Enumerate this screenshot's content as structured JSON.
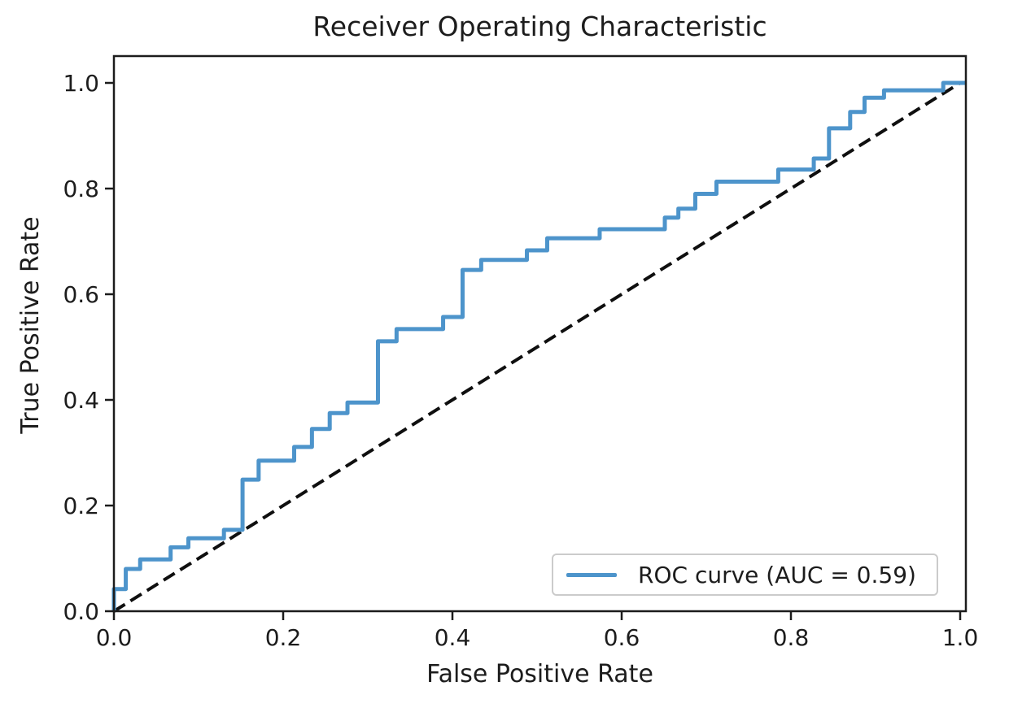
{
  "figure": {
    "title": "Receiver Operating Characteristic",
    "xlabel": "False Positive Rate",
    "ylabel": "True Positive Rate"
  },
  "legend": {
    "label": "ROC curve (AUC = 0.59)"
  },
  "colors": {
    "roc_line": "#4d94cb",
    "diagonal": "#0f0f0f",
    "axis": "#1c1c1c",
    "legend_border": "#cbcbcb",
    "background": "#ffffff"
  },
  "chart_data": {
    "type": "line",
    "title": "Receiver Operating Characteristic",
    "xlabel": "False Positive Rate",
    "ylabel": "True Positive Rate",
    "xlim": [
      0.0,
      1.0
    ],
    "ylim": [
      0.0,
      1.05
    ],
    "x_ticks": [
      "0.0",
      "0.2",
      "0.4",
      "0.6",
      "0.8",
      "1.0"
    ],
    "y_ticks": [
      "0.0",
      "0.2",
      "0.4",
      "0.6",
      "0.8",
      "1.0"
    ],
    "grid": false,
    "legend_position": "lower right",
    "auc": 0.59,
    "series": [
      {
        "name": "ROC curve (AUC = 0.59)",
        "color": "#4d94cb",
        "linestyle": "solid",
        "drawstyle": "steps",
        "points": [
          [
            0.0,
            0.0
          ],
          [
            0.0,
            0.042
          ],
          [
            0.014,
            0.08
          ],
          [
            0.031,
            0.098
          ],
          [
            0.067,
            0.121
          ],
          [
            0.088,
            0.138
          ],
          [
            0.13,
            0.154
          ],
          [
            0.152,
            0.249
          ],
          [
            0.171,
            0.285
          ],
          [
            0.213,
            0.311
          ],
          [
            0.234,
            0.345
          ],
          [
            0.255,
            0.375
          ],
          [
            0.276,
            0.395
          ],
          [
            0.312,
            0.511
          ],
          [
            0.334,
            0.534
          ],
          [
            0.389,
            0.557
          ],
          [
            0.412,
            0.646
          ],
          [
            0.434,
            0.665
          ],
          [
            0.488,
            0.683
          ],
          [
            0.512,
            0.706
          ],
          [
            0.574,
            0.723
          ],
          [
            0.651,
            0.745
          ],
          [
            0.667,
            0.762
          ],
          [
            0.687,
            0.79
          ],
          [
            0.712,
            0.813
          ],
          [
            0.785,
            0.836
          ],
          [
            0.827,
            0.857
          ],
          [
            0.845,
            0.914
          ],
          [
            0.87,
            0.945
          ],
          [
            0.887,
            0.972
          ],
          [
            0.91,
            0.986
          ],
          [
            0.98,
            1.0
          ],
          [
            1.0,
            1.0
          ]
        ]
      },
      {
        "name": "chance-diagonal",
        "color": "#0f0f0f",
        "linestyle": "dashed",
        "drawstyle": "line",
        "points": [
          [
            0.0,
            0.0
          ],
          [
            1.0,
            1.0
          ]
        ]
      }
    ]
  }
}
